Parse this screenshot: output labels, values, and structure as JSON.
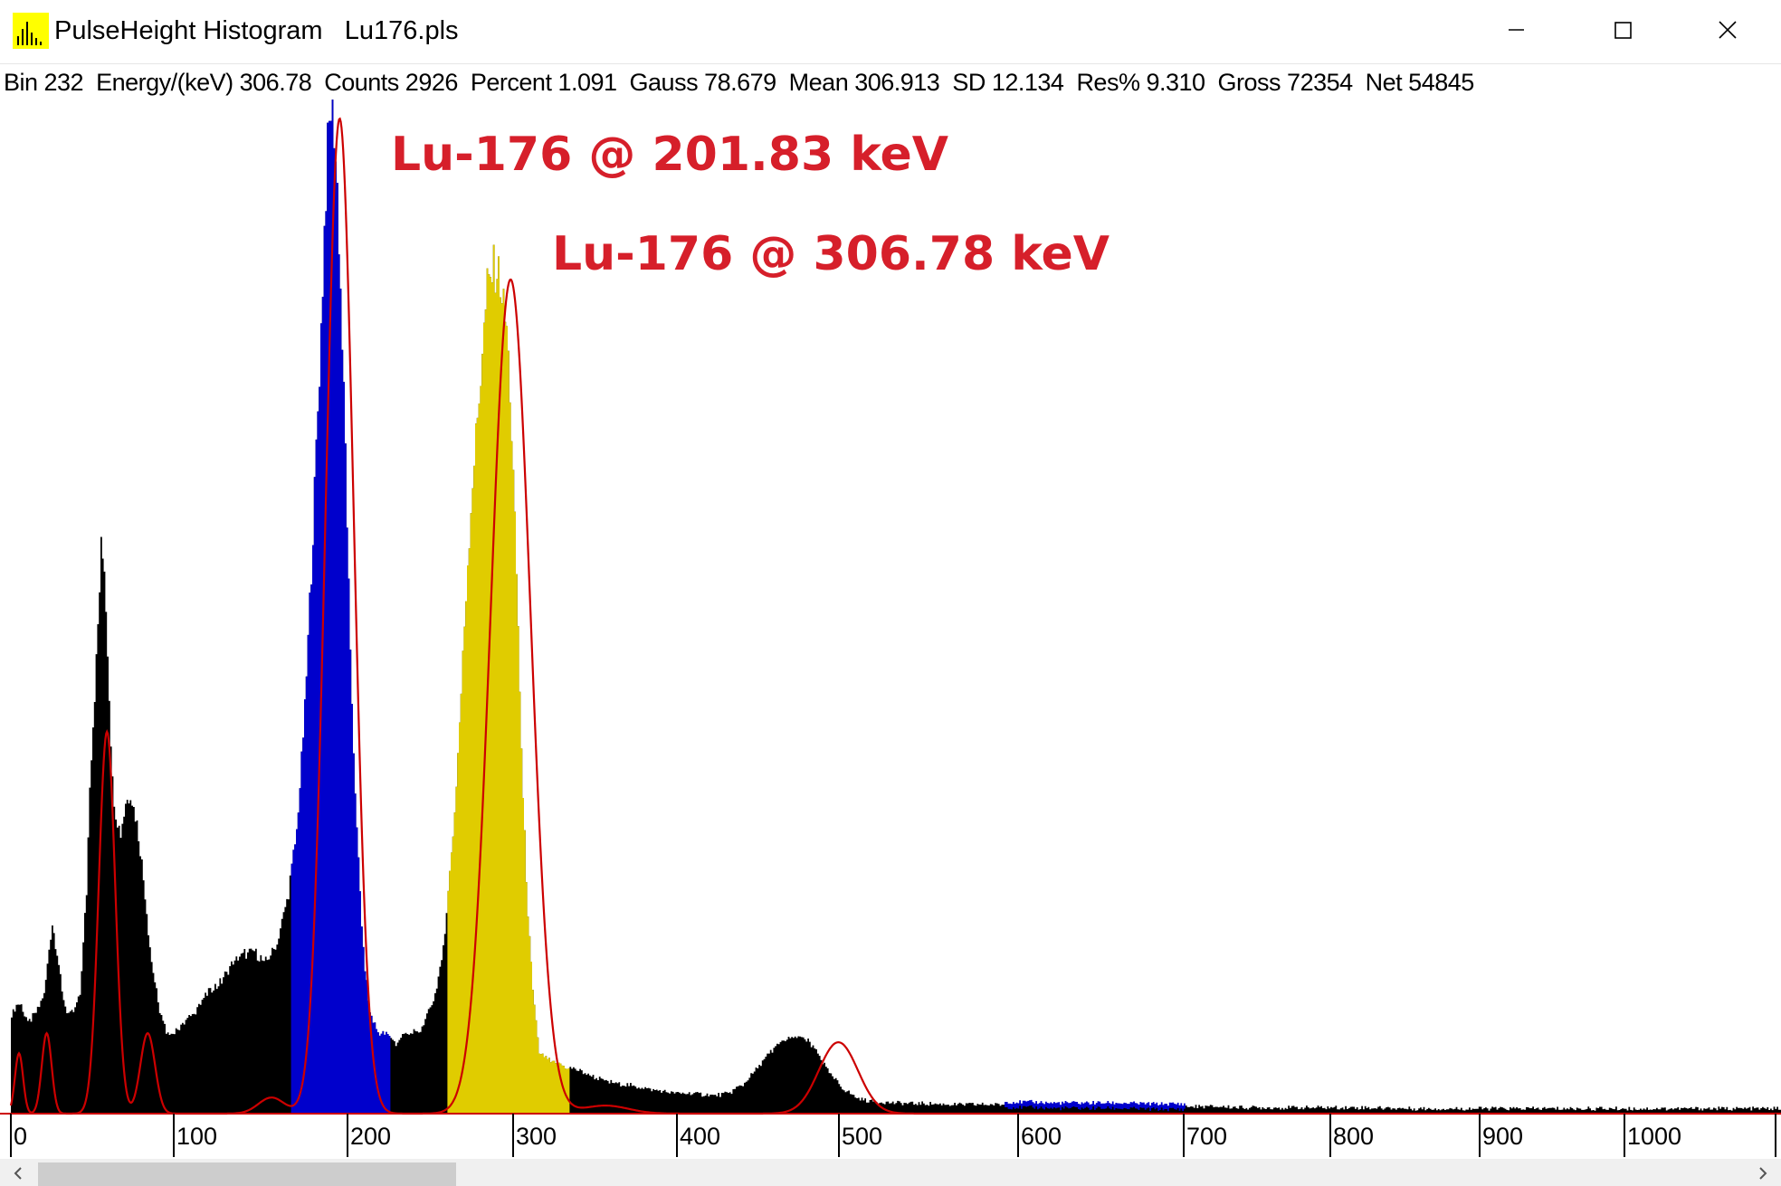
{
  "window": {
    "app_title": "PulseHeight Histogram",
    "file_name": "Lu176.pls",
    "icon": "histogram-app-icon",
    "controls": [
      "minimize-icon",
      "maximize-icon",
      "close-icon"
    ]
  },
  "status": {
    "bin": "Bin 232",
    "energy": "Energy/(keV) 306.78",
    "counts": "Counts 2926",
    "percent": "Percent 1.091",
    "gauss": "Gauss 78.679",
    "mean": "Mean 306.913",
    "sd": "SD 12.134",
    "res": "Res% 9.310",
    "gross": "Gross 72354",
    "net": "Net 54845"
  },
  "annotations": {
    "peak1": "Lu-176 @ 201.83 keV",
    "peak2": "Lu-176 @ 306.78 keV"
  },
  "colors": {
    "spectrum": "#000000",
    "roi_blue": "#0000cc",
    "roi_yellow": "#e0cc00",
    "fit_line": "#cc0000",
    "annotation": "#d61f2a",
    "axis_line": "#cc0000"
  },
  "chart_data": {
    "type": "area",
    "x_label": "",
    "y_label": "",
    "x_ticks": [
      0,
      100,
      200,
      300,
      400,
      500,
      600,
      700,
      800,
      900,
      1000
    ],
    "x_range": [
      0,
      1090
    ],
    "y_range": [
      0,
      1.0
    ],
    "spectrum": {
      "x": [
        0,
        5,
        10,
        15,
        20,
        25,
        28,
        31,
        34,
        38,
        42,
        46,
        48,
        52,
        55,
        57,
        60,
        62,
        64,
        67,
        70,
        73,
        77,
        80,
        83,
        86,
        90,
        95,
        100,
        105,
        112,
        120,
        128,
        136,
        144,
        150,
        155,
        160,
        163,
        166,
        170,
        175,
        180,
        185,
        190,
        192,
        194,
        196,
        198,
        200,
        202,
        205,
        208,
        212,
        216,
        220,
        225,
        230,
        236,
        242,
        250,
        256,
        260,
        264,
        268,
        272,
        276,
        280,
        283,
        286,
        289,
        292,
        294,
        296,
        298,
        300,
        302,
        304,
        306,
        308,
        310,
        312,
        314,
        317,
        320,
        324,
        328,
        332,
        336,
        340,
        346,
        352,
        360,
        370,
        380,
        390,
        400,
        410,
        420,
        430,
        440,
        450,
        460,
        470,
        478,
        484,
        490,
        495,
        500,
        505,
        510,
        515,
        520,
        525,
        530,
        540,
        550,
        560,
        580,
        600,
        620,
        640,
        660,
        680,
        700,
        720,
        740,
        760,
        780,
        800,
        830,
        860,
        900,
        950,
        1000,
        1050,
        1090
      ],
      "y": [
        0.1,
        0.11,
        0.09,
        0.1,
        0.12,
        0.19,
        0.16,
        0.12,
        0.1,
        0.1,
        0.12,
        0.22,
        0.33,
        0.45,
        0.56,
        0.55,
        0.42,
        0.33,
        0.3,
        0.28,
        0.31,
        0.32,
        0.29,
        0.25,
        0.2,
        0.15,
        0.11,
        0.08,
        0.08,
        0.09,
        0.1,
        0.12,
        0.13,
        0.15,
        0.16,
        0.16,
        0.15,
        0.16,
        0.17,
        0.19,
        0.22,
        0.28,
        0.4,
        0.58,
        0.78,
        0.88,
        0.96,
        1.0,
        0.98,
        0.92,
        0.82,
        0.66,
        0.45,
        0.28,
        0.16,
        0.1,
        0.08,
        0.08,
        0.07,
        0.08,
        0.08,
        0.1,
        0.12,
        0.15,
        0.22,
        0.3,
        0.42,
        0.55,
        0.63,
        0.69,
        0.76,
        0.82,
        0.83,
        0.84,
        0.84,
        0.83,
        0.8,
        0.78,
        0.72,
        0.63,
        0.54,
        0.42,
        0.31,
        0.2,
        0.12,
        0.06,
        0.055,
        0.05,
        0.05,
        0.045,
        0.045,
        0.04,
        0.035,
        0.03,
        0.028,
        0.025,
        0.022,
        0.02,
        0.02,
        0.018,
        0.02,
        0.03,
        0.05,
        0.068,
        0.075,
        0.076,
        0.07,
        0.06,
        0.045,
        0.035,
        0.025,
        0.02,
        0.015,
        0.013,
        0.012,
        0.011,
        0.01,
        0.01,
        0.009,
        0.009,
        0.009,
        0.008,
        0.008,
        0.008,
        0.007,
        0.007,
        0.007,
        0.006,
        0.006,
        0.006,
        0.006,
        0.005,
        0.005,
        0.005,
        0.005,
        0.005,
        0.005
      ]
    },
    "fit_curve": {
      "x": [
        0,
        5,
        8,
        11,
        14,
        17,
        20,
        23,
        26,
        29,
        32,
        35,
        38,
        41,
        44,
        47,
        50,
        53,
        56,
        59,
        62,
        65,
        68,
        71,
        74,
        77,
        80,
        83,
        86,
        90,
        95,
        100,
        110,
        120,
        130,
        140,
        145,
        150,
        155,
        160,
        165,
        170,
        175,
        180,
        185,
        188,
        191,
        194,
        196,
        198,
        200,
        202,
        204,
        206,
        209,
        212,
        215,
        218,
        221,
        225,
        230,
        240,
        250,
        260,
        265,
        270,
        275,
        280,
        285,
        288,
        291,
        294,
        297,
        300,
        302,
        304,
        306,
        308,
        310,
        312,
        314,
        317,
        320,
        323,
        326,
        330,
        336,
        345,
        360,
        375,
        390,
        400,
        420,
        440,
        460,
        470,
        480,
        486,
        492,
        497,
        502,
        507,
        512,
        517,
        522,
        526,
        530,
        540,
        560,
        600,
        700,
        800,
        900,
        1000,
        1090
      ],
      "y": [
        0.0,
        0.05,
        0.0,
        0.0,
        0.02,
        0.05,
        0.0,
        0.0,
        0.0,
        0.0,
        0.0,
        0.0,
        0.0,
        0.0,
        0.0,
        0.0,
        0.0,
        0.05,
        0.0,
        0.0,
        0.0,
        0.0,
        0.0,
        0.0,
        0.0,
        0.0,
        0.0,
        0.0,
        0.0,
        0.0,
        0.0,
        0.0,
        0.0,
        0.0,
        0.0,
        0.0,
        0.0,
        0.0,
        0.0,
        0.0,
        0.0,
        0.0,
        0.0,
        0.0,
        0.0,
        0.0,
        0.0,
        0.0,
        0.0,
        0.0,
        0.0,
        0.0,
        0.0,
        0.0,
        0.0,
        0.0,
        0.0,
        0.0,
        0.0,
        0.0,
        0.0,
        0.0,
        0.0,
        0.0,
        0.0,
        0.0,
        0.0,
        0.0,
        0.0,
        0.0,
        0.0,
        0.0,
        0.0,
        0.0,
        0.0,
        0.0,
        0.0,
        0.0,
        0.0,
        0.0,
        0.0,
        0.0,
        0.0,
        0.0,
        0.0,
        0.0,
        0.0,
        0.0,
        0.0,
        0.0,
        0.0,
        0.0,
        0.0,
        0.0,
        0.0,
        0.0,
        0.0,
        0.0,
        0.0,
        0.0,
        0.0,
        0.0,
        0.0,
        0.0,
        0.0,
        0.0,
        0.0,
        0.0,
        0.0,
        0.0,
        0.0,
        0.0,
        0.0,
        0.0,
        0.0
      ]
    },
    "fit_peaks": [
      {
        "center": 5,
        "sigma": 2.5,
        "height": 0.06
      },
      {
        "center": 22,
        "sigma": 3.0,
        "height": 0.08
      },
      {
        "center": 59,
        "sigma": 5.0,
        "height": 0.38
      },
      {
        "center": 84,
        "sigma": 4.5,
        "height": 0.08
      },
      {
        "center": 160,
        "sigma": 8.0,
        "height": 0.016
      },
      {
        "center": 201.83,
        "sigma": 8.6,
        "height": 0.99
      },
      {
        "center": 306.78,
        "sigma": 12.134,
        "height": 0.83
      },
      {
        "center": 365,
        "sigma": 14.0,
        "height": 0.008
      },
      {
        "center": 508,
        "sigma": 12.0,
        "height": 0.071
      }
    ],
    "roi_blue": [
      [
        172,
        232
      ]
    ],
    "roi_blue_faint": [
      [
        610,
        720
      ]
    ],
    "roi_yellow": [
      [
        268,
        342
      ]
    ],
    "annotations": [
      {
        "text": "Lu-176 @ 201.83 keV",
        "x": 201.83
      },
      {
        "text": "Lu-176 @ 306.78 keV",
        "x": 306.78
      }
    ]
  }
}
